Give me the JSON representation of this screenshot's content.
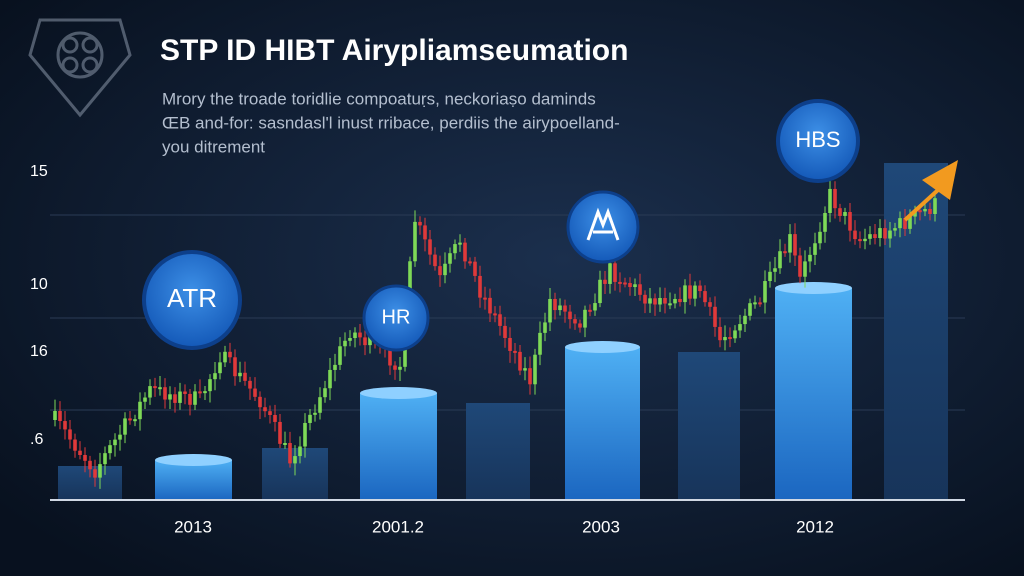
{
  "header": {
    "title": "STP ID HIBT Airypliamseumation",
    "subtitle": [
      "Mrory the troade toridlie compoatuṛs, neckoriaṣo daminds",
      "ŒB and-for: sasndasl'l inust rribace, perdiis the airypoelland-",
      "you ditrement"
    ]
  },
  "axis": {
    "y_labels": [
      "15",
      "10",
      "16",
      ".6"
    ],
    "x_labels": [
      "2013",
      "2001.2",
      "2003",
      "2012"
    ]
  },
  "badges": [
    "ATR",
    "HR",
    "HBS"
  ]
}
